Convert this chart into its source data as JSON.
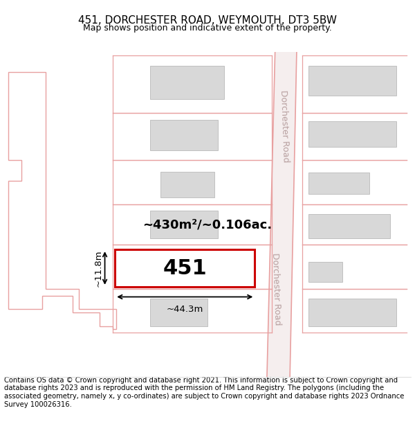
{
  "title": "451, DORCHESTER ROAD, WEYMOUTH, DT3 5BW",
  "subtitle": "Map shows position and indicative extent of the property.",
  "footer": "Contains OS data © Crown copyright and database right 2021. This information is subject to Crown copyright and database rights 2023 and is reproduced with the permission of HM Land Registry. The polygons (including the associated geometry, namely x, y co-ordinates) are subject to Crown copyright and database rights 2023 Ordnance Survey 100026316.",
  "background_color": "#ffffff",
  "road_fill": "#f5f0f0",
  "road_line": "#e8a0a0",
  "plot_outline_color": "#cc0000",
  "building_fill": "#d8d8d8",
  "building_outline": "#c0c0c0",
  "road_label": "Dorchester Road",
  "plot_label": "451",
  "area_label": "~430m²/~0.106ac.",
  "width_label": "~44.3m",
  "height_label": "~11.8m",
  "title_fontsize": 11,
  "subtitle_fontsize": 9,
  "footer_fontsize": 7.2
}
